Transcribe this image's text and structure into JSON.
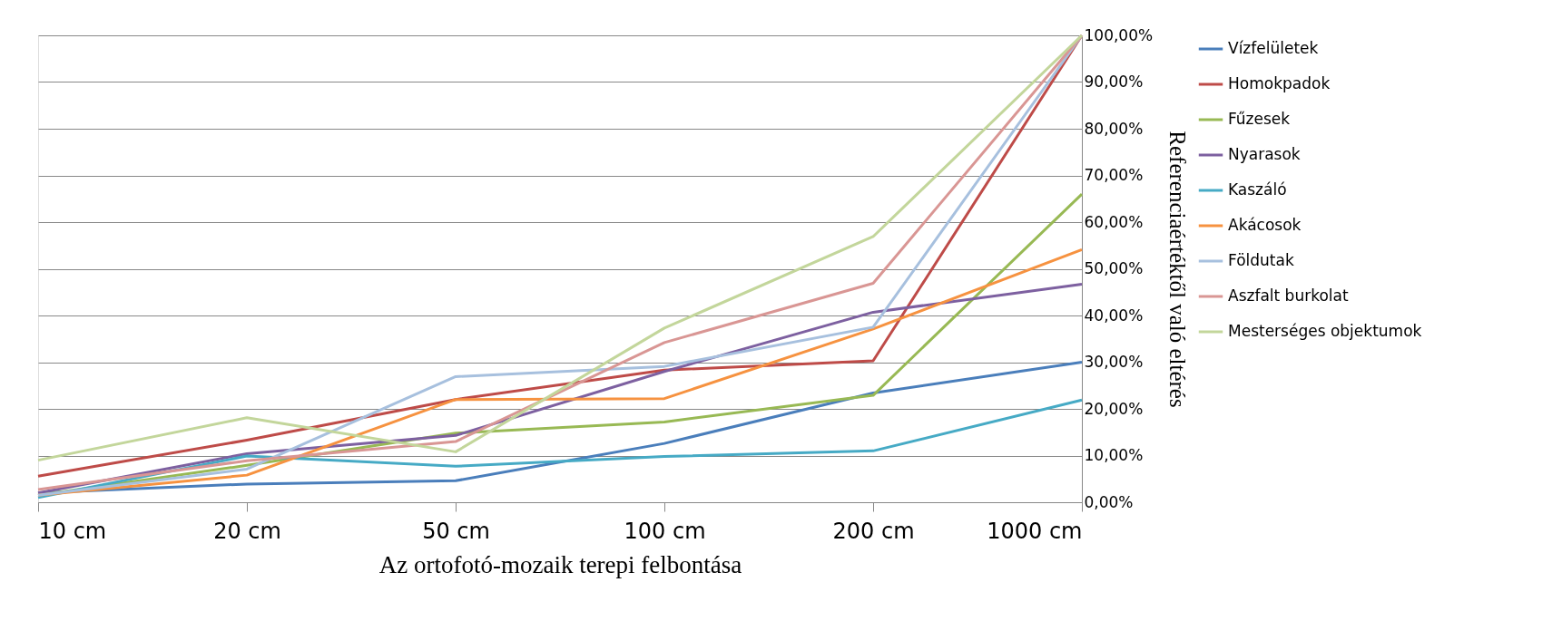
{
  "chart_data": {
    "type": "line",
    "xlabel": "Az ortofotó-mozaik terepi felbontása",
    "ylabel": "Referenciaértéktől való eltérés",
    "categories": [
      "10 cm",
      "20 cm",
      "50 cm",
      "100 cm",
      "200 cm",
      "1000 cm"
    ],
    "series": [
      {
        "name": "Vízfelületek",
        "color": "#4a7ebb",
        "values": [
          2.0,
          3.9,
          4.6,
          12.6,
          23.4,
          30.0
        ]
      },
      {
        "name": "Homokpadok",
        "color": "#be4b48",
        "values": [
          5.6,
          13.3,
          22.0,
          28.3,
          30.3,
          100
        ]
      },
      {
        "name": "Fűzesek",
        "color": "#98b954",
        "values": [
          1.5,
          7.9,
          14.8,
          17.2,
          22.9,
          66.0
        ]
      },
      {
        "name": "Nyarasok",
        "color": "#7d60a0",
        "values": [
          2.0,
          10.4,
          14.3,
          28.0,
          40.7,
          46.7
        ]
      },
      {
        "name": "Kaszáló",
        "color": "#46aac5",
        "values": [
          1.0,
          9.9,
          7.7,
          9.8,
          11.0,
          21.9
        ]
      },
      {
        "name": "Akácosok",
        "color": "#f69240",
        "values": [
          1.5,
          5.8,
          22.0,
          22.2,
          37.1,
          54.1
        ]
      },
      {
        "name": "Földutak",
        "color": "#a7c0de",
        "values": [
          1.5,
          7.1,
          26.9,
          29.1,
          37.5,
          100
        ]
      },
      {
        "name": "Aszfalt burkolat",
        "color": "#d99694",
        "values": [
          2.7,
          8.9,
          13.0,
          34.2,
          46.9,
          100
        ]
      },
      {
        "name": "Mesterséges objektumok",
        "color": "#c3d69b",
        "values": [
          9.0,
          18.1,
          10.8,
          37.3,
          56.9,
          100
        ]
      }
    ],
    "ylim": [
      0,
      100
    ],
    "yticks": [
      {
        "value": 0,
        "label": "0,00%"
      },
      {
        "value": 10,
        "label": "10,00%"
      },
      {
        "value": 20,
        "label": "20,00%"
      },
      {
        "value": 30,
        "label": "30,00%"
      },
      {
        "value": 40,
        "label": "40,00%"
      },
      {
        "value": 50,
        "label": "50,00%"
      },
      {
        "value": 60,
        "label": "60,00%"
      },
      {
        "value": 70,
        "label": "70,00%"
      },
      {
        "value": 80,
        "label": "80,00%"
      },
      {
        "value": 90,
        "label": "90,00%"
      },
      {
        "value": 100,
        "label": "100,00%"
      }
    ],
    "grid": "y",
    "legend": "right",
    "marker": "none",
    "line_style": "solid"
  }
}
